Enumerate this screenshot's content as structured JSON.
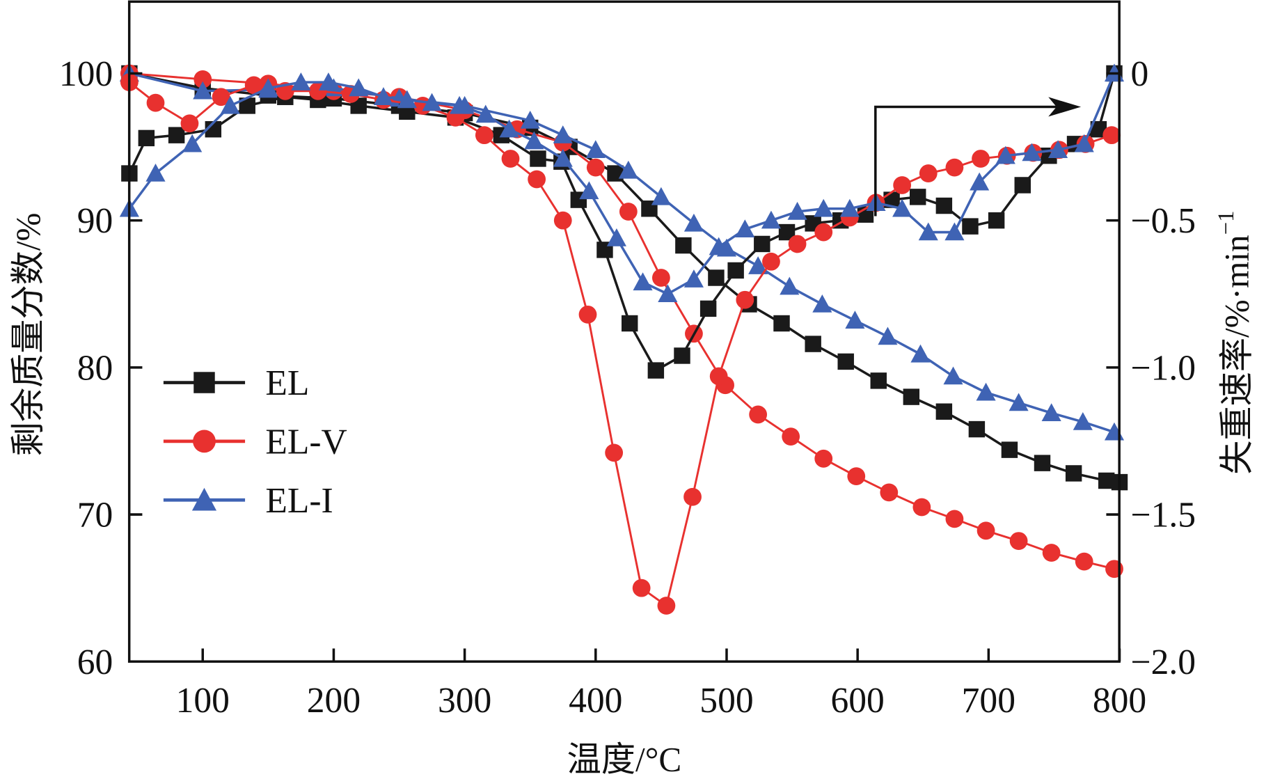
{
  "chart_data": {
    "type": "line",
    "title": "",
    "xlabel": "温度/°C",
    "ylabel": "剩余质量分数/%",
    "ylabel_right": "失重速率/%·min",
    "ylabel_right_sup": "−1",
    "xlim": [
      44,
      800
    ],
    "ylim": [
      60,
      105
    ],
    "ylim_right": [
      -2.0,
      0.25
    ],
    "x_ticks": [
      100,
      200,
      300,
      400,
      500,
      600,
      700,
      800
    ],
    "x_tick_labels": [
      "100",
      "200",
      "300",
      "400",
      "500",
      "600",
      "700",
      "800"
    ],
    "y_ticks": [
      60,
      70,
      80,
      90,
      100
    ],
    "y_tick_labels": [
      "60",
      "70",
      "80",
      "90",
      "100"
    ],
    "y_ticks_right": [
      -2.0,
      -1.5,
      -1.0,
      -0.5,
      0
    ],
    "y_tick_labels_right": [
      "−2.0",
      "−1.5",
      "−1.0",
      "−0.5",
      "0"
    ],
    "grid": false,
    "legend": {
      "placement": "middle-left",
      "entries": [
        "EL",
        "EL-V",
        "EL-I"
      ]
    },
    "annotation": "arrow pointing from TG curves to right axis",
    "series": [
      {
        "name": "EL",
        "curve": "TG",
        "axis": "left",
        "color": "#1a1a1a",
        "marker": "square",
        "x": [
          44,
          100,
          150,
          200,
          250,
          300,
          350,
          380,
          415,
          441,
          467,
          492,
          517,
          542,
          566,
          591,
          616,
          641,
          666,
          691,
          716,
          741,
          765,
          790,
          800
        ],
        "y": [
          100,
          99,
          98.5,
          98.3,
          97.8,
          97.3,
          96.3,
          95,
          93.2,
          90.8,
          88.3,
          86.1,
          84.3,
          83,
          81.6,
          80.4,
          79.1,
          78,
          77,
          75.8,
          74.4,
          73.5,
          72.8,
          72.3,
          72.2
        ]
      },
      {
        "name": "EL-V",
        "curve": "TG",
        "axis": "left",
        "color": "#e8312f",
        "marker": "circle",
        "x": [
          44,
          100,
          150,
          200,
          250,
          300,
          340,
          375,
          400,
          425,
          450,
          475,
          499,
          524,
          549,
          574,
          599,
          624,
          649,
          674,
          698,
          723,
          748,
          773,
          796
        ],
        "y": [
          100,
          99.6,
          99.3,
          98.8,
          98.4,
          97.5,
          96.2,
          95.3,
          93.6,
          90.6,
          86.1,
          82.3,
          78.8,
          76.8,
          75.3,
          73.8,
          72.6,
          71.5,
          70.5,
          69.7,
          68.9,
          68.2,
          67.4,
          66.8,
          66.3
        ]
      },
      {
        "name": "EL-I",
        "curve": "TG",
        "axis": "left",
        "color": "#3f63b4",
        "marker": "triangle",
        "x": [
          44,
          100,
          150,
          200,
          250,
          300,
          350,
          375,
          400,
          425,
          450,
          475,
          500,
          524,
          548,
          573,
          598,
          623,
          648,
          673,
          698,
          723,
          748,
          772,
          796
        ],
        "y": [
          100,
          98.8,
          98.9,
          99,
          98.3,
          97.8,
          96.8,
          95.8,
          94.8,
          93.4,
          91.6,
          89.8,
          88.1,
          86.9,
          85.5,
          84.3,
          83.2,
          82.1,
          80.9,
          79.4,
          78.3,
          77.6,
          76.9,
          76.3,
          75.6
        ]
      },
      {
        "name": "EL",
        "curve": "DTG",
        "axis": "right",
        "color": "#1a1a1a",
        "marker": "square",
        "x": [
          44,
          57,
          80,
          108,
          134,
          163,
          188,
          219,
          256,
          293,
          328,
          356,
          374,
          387,
          407,
          426,
          446,
          466,
          486,
          507,
          527,
          546,
          566,
          587,
          606,
          626,
          646,
          666,
          686,
          706,
          726,
          746,
          766,
          784,
          796
        ],
        "y": [
          -0.34,
          -0.22,
          -0.21,
          -0.19,
          -0.11,
          -0.08,
          -0.09,
          -0.11,
          -0.13,
          -0.15,
          -0.21,
          -0.29,
          -0.3,
          -0.43,
          -0.6,
          -0.85,
          -1.01,
          -0.96,
          -0.8,
          -0.67,
          -0.58,
          -0.54,
          -0.51,
          -0.5,
          -0.48,
          -0.43,
          -0.42,
          -0.45,
          -0.52,
          -0.5,
          -0.38,
          -0.28,
          -0.24,
          -0.19,
          0
        ]
      },
      {
        "name": "EL-V",
        "curve": "DTG",
        "axis": "right",
        "color": "#e8312f",
        "marker": "circle",
        "x": [
          44,
          64,
          90,
          114,
          139,
          163,
          188,
          213,
          238,
          268,
          293,
          315,
          335,
          355,
          375,
          394,
          414,
          435,
          454,
          474,
          494,
          514,
          534,
          554,
          574,
          594,
          614,
          634,
          654,
          674,
          694,
          714,
          734,
          754,
          774,
          794
        ],
        "y": [
          -0.03,
          -0.1,
          -0.17,
          -0.08,
          -0.04,
          -0.06,
          -0.06,
          -0.07,
          -0.09,
          -0.11,
          -0.15,
          -0.21,
          -0.29,
          -0.36,
          -0.5,
          -0.82,
          -1.29,
          -1.75,
          -1.81,
          -1.44,
          -1.03,
          -0.77,
          -0.64,
          -0.58,
          -0.54,
          -0.49,
          -0.44,
          -0.38,
          -0.34,
          -0.32,
          -0.29,
          -0.28,
          -0.27,
          -0.26,
          -0.24,
          -0.21
        ]
      },
      {
        "name": "EL-I",
        "curve": "DTG",
        "axis": "right",
        "color": "#3f63b4",
        "marker": "triangle",
        "x": [
          44,
          64,
          92,
          121,
          150,
          175,
          196,
          219,
          238,
          256,
          275,
          296,
          316,
          334,
          353,
          375,
          395,
          416,
          436,
          455,
          475,
          494,
          514,
          534,
          554,
          574,
          594,
          614,
          634,
          654,
          674,
          693,
          713,
          733,
          753,
          773,
          796
        ],
        "y": [
          -0.46,
          -0.34,
          -0.24,
          -0.11,
          -0.05,
          -0.03,
          -0.03,
          -0.05,
          -0.08,
          -0.09,
          -0.1,
          -0.11,
          -0.14,
          -0.19,
          -0.23,
          -0.29,
          -0.4,
          -0.56,
          -0.71,
          -0.75,
          -0.7,
          -0.59,
          -0.53,
          -0.5,
          -0.47,
          -0.46,
          -0.46,
          -0.44,
          -0.46,
          -0.54,
          -0.54,
          -0.37,
          -0.28,
          -0.27,
          -0.26,
          -0.24,
          0
        ]
      }
    ]
  }
}
